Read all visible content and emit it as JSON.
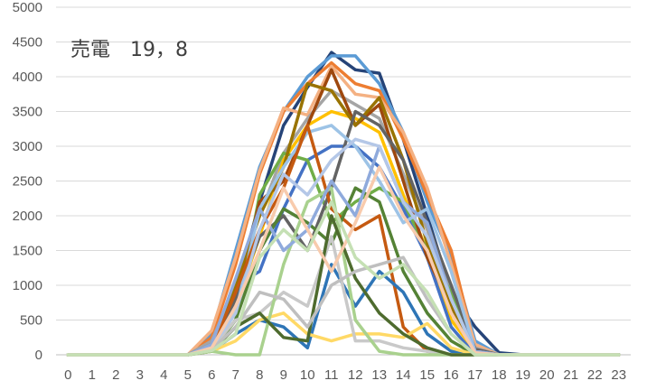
{
  "chart_data": {
    "type": "line",
    "title": "売電　19，8",
    "xlabel": "",
    "ylabel": "",
    "x": [
      "0",
      "1",
      "2",
      "3",
      "4",
      "5",
      "6",
      "7",
      "8",
      "9",
      "10",
      "11",
      "12",
      "13",
      "14",
      "15",
      "16",
      "17",
      "18",
      "19",
      "20",
      "21",
      "22",
      "23"
    ],
    "ylim": [
      0,
      5000
    ],
    "yticks": [
      0,
      500,
      1000,
      1500,
      2000,
      2500,
      3000,
      3500,
      4000,
      4500,
      5000
    ],
    "grid": true,
    "legend": "none",
    "series": [
      {
        "color": "#264478",
        "values": [
          0,
          0,
          0,
          0,
          0,
          0,
          150,
          900,
          2200,
          3300,
          3850,
          4350,
          4100,
          4050,
          3100,
          2000,
          900,
          400,
          30,
          0,
          0,
          0,
          0,
          0
        ]
      },
      {
        "color": "#5b9bd5",
        "values": [
          0,
          0,
          0,
          0,
          0,
          0,
          300,
          1500,
          2700,
          3500,
          4000,
          4300,
          4300,
          3900,
          3200,
          2200,
          1400,
          200,
          0,
          0,
          0,
          0,
          0,
          0
        ]
      },
      {
        "color": "#ed7d31",
        "values": [
          0,
          0,
          0,
          0,
          0,
          0,
          250,
          1300,
          2600,
          3500,
          3900,
          4200,
          3900,
          3800,
          3100,
          2300,
          1500,
          100,
          0,
          0,
          0,
          0,
          0,
          0
        ]
      },
      {
        "color": "#f4b183",
        "values": [
          0,
          0,
          0,
          0,
          0,
          0,
          350,
          1400,
          2650,
          3550,
          3450,
          4150,
          3750,
          3700,
          3200,
          2400,
          1300,
          150,
          0,
          0,
          0,
          0,
          0,
          0
        ]
      },
      {
        "color": "#a5a5a5",
        "values": [
          0,
          0,
          0,
          0,
          0,
          0,
          200,
          1000,
          2000,
          2900,
          3400,
          3800,
          3600,
          3400,
          2600,
          1800,
          900,
          100,
          0,
          0,
          0,
          0,
          0,
          0
        ]
      },
      {
        "color": "#ffc000",
        "values": [
          0,
          0,
          0,
          0,
          0,
          0,
          100,
          700,
          1700,
          2800,
          3300,
          3500,
          3400,
          3200,
          2300,
          1500,
          500,
          50,
          0,
          0,
          0,
          0,
          0,
          0
        ]
      },
      {
        "color": "#4472c4",
        "values": [
          0,
          0,
          0,
          0,
          0,
          0,
          80,
          1000,
          1200,
          2100,
          2800,
          3000,
          3000,
          2700,
          2100,
          1400,
          400,
          0,
          0,
          0,
          0,
          0,
          0,
          0
        ]
      },
      {
        "color": "#70ad47",
        "values": [
          0,
          0,
          0,
          0,
          0,
          0,
          50,
          500,
          2300,
          2900,
          2800,
          1900,
          2200,
          2400,
          2200,
          1500,
          900,
          50,
          0,
          0,
          0,
          0,
          0,
          0
        ]
      },
      {
        "color": "#9e480e",
        "values": [
          0,
          0,
          0,
          0,
          0,
          0,
          100,
          800,
          2200,
          2500,
          3300,
          4100,
          3300,
          3600,
          2500,
          1400,
          700,
          50,
          0,
          0,
          0,
          0,
          0,
          0
        ]
      },
      {
        "color": "#997300",
        "values": [
          0,
          0,
          0,
          0,
          0,
          0,
          150,
          1000,
          2000,
          2700,
          3900,
          3800,
          3300,
          3700,
          2800,
          1600,
          700,
          50,
          0,
          0,
          0,
          0,
          0,
          0
        ]
      },
      {
        "color": "#636363",
        "values": [
          0,
          0,
          0,
          0,
          0,
          0,
          120,
          800,
          1700,
          2000,
          1500,
          2400,
          3500,
          3300,
          2800,
          1900,
          1000,
          80,
          0,
          0,
          0,
          0,
          0,
          0
        ]
      },
      {
        "color": "#9dc3e6",
        "values": [
          0,
          0,
          0,
          0,
          0,
          0,
          100,
          600,
          2100,
          2700,
          3200,
          3300,
          3000,
          2500,
          1900,
          2100,
          1200,
          50,
          0,
          0,
          0,
          0,
          0,
          0
        ]
      },
      {
        "color": "#c55a11",
        "values": [
          0,
          0,
          0,
          0,
          0,
          0,
          100,
          900,
          1800,
          2400,
          3300,
          2100,
          1800,
          2000,
          400,
          50,
          0,
          0,
          0,
          0,
          0,
          0,
          0,
          0
        ]
      },
      {
        "color": "#548235",
        "values": [
          0,
          0,
          0,
          0,
          0,
          0,
          80,
          500,
          1500,
          2100,
          1900,
          1600,
          2400,
          2200,
          1200,
          600,
          200,
          0,
          0,
          0,
          0,
          0,
          0,
          0
        ]
      },
      {
        "color": "#2e75b6",
        "values": [
          0,
          0,
          0,
          0,
          0,
          0,
          50,
          300,
          500,
          400,
          100,
          1300,
          700,
          1200,
          900,
          300,
          50,
          0,
          0,
          0,
          0,
          0,
          0,
          0
        ]
      },
      {
        "color": "#ffd966",
        "values": [
          0,
          0,
          0,
          0,
          0,
          0,
          50,
          200,
          500,
          600,
          300,
          200,
          300,
          300,
          250,
          450,
          100,
          0,
          0,
          0,
          0,
          0,
          0,
          0
        ]
      },
      {
        "color": "#c9c9c9",
        "values": [
          0,
          0,
          0,
          0,
          0,
          0,
          100,
          500,
          600,
          900,
          700,
          1700,
          200,
          200,
          100,
          50,
          0,
          0,
          0,
          0,
          0,
          0,
          0,
          0
        ]
      },
      {
        "color": "#a9d18e",
        "values": [
          0,
          0,
          0,
          0,
          0,
          0,
          50,
          0,
          0,
          1300,
          2200,
          2400,
          500,
          50,
          0,
          0,
          0,
          0,
          0,
          0,
          0,
          0,
          0,
          0
        ]
      },
      {
        "color": "#8faadc",
        "values": [
          0,
          0,
          0,
          0,
          0,
          0,
          150,
          1100,
          2100,
          1500,
          1800,
          2500,
          2000,
          3000,
          2200,
          1900,
          800,
          50,
          0,
          0,
          0,
          0,
          0,
          0
        ]
      },
      {
        "color": "#4e6b2e",
        "values": [
          0,
          0,
          0,
          0,
          0,
          0,
          60,
          400,
          600,
          250,
          200,
          2000,
          1100,
          600,
          300,
          100,
          0,
          0,
          0,
          0,
          0,
          0,
          0,
          0
        ]
      },
      {
        "color": "#b4c7e7",
        "values": [
          0,
          0,
          0,
          0,
          0,
          0,
          100,
          600,
          1800,
          2600,
          2300,
          2800,
          3100,
          3000,
          2200,
          1700,
          800,
          30,
          0,
          0,
          0,
          0,
          0,
          0
        ]
      },
      {
        "color": "#bfbfbf",
        "values": [
          0,
          0,
          0,
          0,
          0,
          0,
          80,
          400,
          900,
          800,
          400,
          1000,
          1200,
          1300,
          1400,
          800,
          300,
          0,
          0,
          0,
          0,
          0,
          0,
          0
        ]
      },
      {
        "color": "#f8cbad",
        "values": [
          0,
          0,
          0,
          0,
          0,
          0,
          100,
          700,
          1500,
          2400,
          1800,
          1200,
          1900,
          2700,
          2000,
          1500,
          600,
          30,
          0,
          0,
          0,
          0,
          0,
          0
        ]
      },
      {
        "color": "#c5e0b4",
        "values": [
          0,
          0,
          0,
          0,
          0,
          0,
          60,
          300,
          1400,
          1800,
          1500,
          2200,
          1400,
          1100,
          1300,
          900,
          300,
          0,
          0,
          0,
          0,
          0,
          0,
          0
        ]
      }
    ]
  }
}
